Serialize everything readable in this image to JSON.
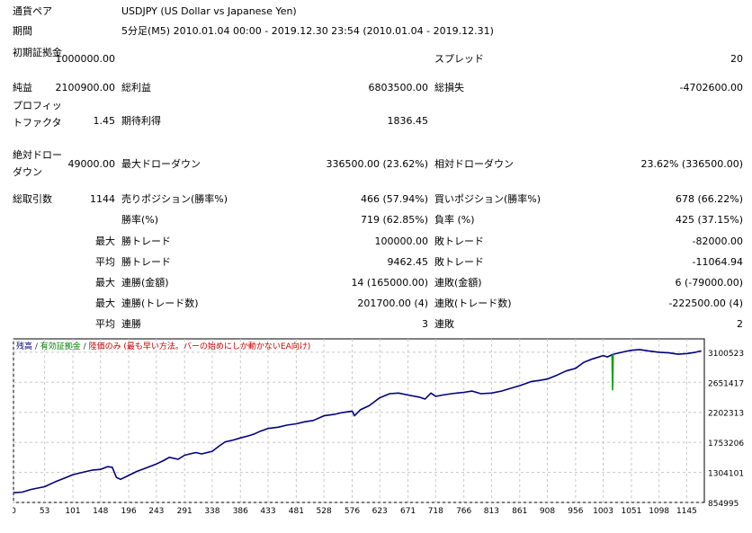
{
  "summary": {
    "symbol_label": "通貨ペア",
    "symbol_value": "USDJPY (US Dollar vs Japanese Yen)",
    "period_label": "期間",
    "period_value": "5分足(M5) 2010.01.04 00:00 - 2019.12.30 23:54 (2010.01.04 - 2019.12.31)",
    "initial_deposit_label": "初期証拠金",
    "initial_deposit_value": "1000000.00",
    "spread_label": "スプレッド",
    "spread_value": "20",
    "net_profit_label": "純益",
    "net_profit_value": "2100900.00",
    "gross_profit_label": "総利益",
    "gross_profit_value": "6803500.00",
    "gross_loss_label": "総損失",
    "gross_loss_value": "-4702600.00",
    "profit_factor_label": "プロフィットファクタ",
    "profit_factor_value": "1.45",
    "expected_payoff_label": "期待利得",
    "expected_payoff_value": "1836.45",
    "abs_drawdown_label": "絶対ドローダウン",
    "abs_drawdown_value": "49000.00",
    "max_drawdown_label": "最大ドローダウン",
    "max_drawdown_value": "336500.00 (23.62%)",
    "rel_drawdown_label": "相対ドローダウン",
    "rel_drawdown_value": "23.62% (336500.00)"
  },
  "trades": {
    "total_label": "総取引数",
    "total_value": "1144",
    "short_label": "売りポジション(勝率%)",
    "short_value": "466 (57.94%)",
    "long_label": "買いポジション(勝率%)",
    "long_value": "678 (66.22%)",
    "win_rate_label": "勝率(%)",
    "win_rate_value": "719 (62.85%)",
    "loss_rate_label": "負率 (%)",
    "loss_rate_value": "425 (37.15%)",
    "largest_label": "最大",
    "largest_win_label": "勝トレード",
    "largest_win_value": "100000.00",
    "largest_loss_label": "敗トレード",
    "largest_loss_value": "-82000.00",
    "average_label": "平均",
    "average_win_label": "勝トレード",
    "average_win_value": "9462.45",
    "average_loss_label": "敗トレード",
    "average_loss_value": "-11064.94",
    "max_consec_label": "最大",
    "max_consec_win_label": "連勝(金額)",
    "max_consec_win_value": "14 (165000.00)",
    "max_consec_loss_label": "連敗(金額)",
    "max_consec_loss_value": "6 (-79000.00)",
    "max_consec_profit_label": "最大",
    "max_consec_profit_win_label": "連勝(トレード数)",
    "max_consec_profit_win_value": "201700.00 (4)",
    "max_consec_profit_loss_label": "連敗(トレード数)",
    "max_consec_profit_loss_value": "-222500.00 (4)",
    "avg_consec_label": "平均",
    "avg_consec_win_label": "連勝",
    "avg_consec_win_value": "3",
    "avg_consec_loss_label": "連敗",
    "avg_consec_loss_value": "2"
  },
  "chart_data": {
    "type": "line",
    "legend": {
      "balance": "残高",
      "equity": "有効証拠金",
      "margin_note": "陸価のみ (最も早い方法。バーの始めにしか動かないEA向け)"
    },
    "colors": {
      "balance": "#000080",
      "equity": "#00a000",
      "grid": "#c8c8c8"
    },
    "x_ticks": [
      0,
      53,
      101,
      148,
      196,
      243,
      291,
      338,
      386,
      433,
      481,
      528,
      576,
      623,
      671,
      718,
      766,
      813,
      861,
      908,
      956,
      1003,
      1051,
      1098,
      1145
    ],
    "y_ticks": [
      3100523,
      2651417,
      2202313,
      1753206,
      1304101,
      854995
    ],
    "xlim": [
      0,
      1175
    ],
    "ylim": [
      854995,
      3300000
    ],
    "grid": true,
    "series": [
      {
        "name": "残高",
        "x": [
          0,
          15,
          30,
          53,
          70,
          90,
          101,
          120,
          135,
          148,
          160,
          168,
          175,
          182,
          196,
          210,
          225,
          243,
          255,
          265,
          280,
          291,
          300,
          310,
          320,
          338,
          350,
          360,
          375,
          386,
          400,
          410,
          420,
          433,
          450,
          465,
          481,
          495,
          510,
          528,
          545,
          560,
          576,
          580,
          590,
          605,
          623,
          640,
          655,
          671,
          690,
          700,
          710,
          718,
          730,
          745,
          766,
          780,
          795,
          813,
          830,
          845,
          861,
          880,
          895,
          908,
          925,
          940,
          956,
          970,
          985,
          1003,
          1010,
          1020,
          1030,
          1040,
          1051,
          1065,
          1080,
          1098,
          1115,
          1130,
          1145,
          1160,
          1170
        ],
        "y": [
          1000000,
          1010000,
          1050000,
          1090000,
          1160000,
          1230000,
          1270000,
          1310000,
          1340000,
          1350000,
          1390000,
          1380000,
          1230000,
          1200000,
          1260000,
          1320000,
          1370000,
          1430000,
          1480000,
          1530000,
          1500000,
          1560000,
          1580000,
          1600000,
          1580000,
          1620000,
          1700000,
          1760000,
          1790000,
          1820000,
          1850000,
          1880000,
          1920000,
          1960000,
          1980000,
          2010000,
          2030000,
          2060000,
          2080000,
          2150000,
          2170000,
          2200000,
          2220000,
          2150000,
          2240000,
          2300000,
          2420000,
          2480000,
          2490000,
          2460000,
          2430000,
          2400000,
          2490000,
          2440000,
          2460000,
          2480000,
          2500000,
          2520000,
          2480000,
          2490000,
          2520000,
          2560000,
          2600000,
          2660000,
          2680000,
          2700000,
          2760000,
          2820000,
          2860000,
          2950000,
          3000000,
          3050000,
          3030000,
          3070000,
          3090000,
          3110000,
          3130000,
          3140000,
          3120000,
          3100000,
          3090000,
          3070000,
          3080000,
          3100000,
          3120000
        ]
      },
      {
        "name": "有効証拠金",
        "x": [
          1018,
          1019,
          1020
        ],
        "y": [
          3060000,
          2540000,
          3080000
        ]
      }
    ]
  }
}
